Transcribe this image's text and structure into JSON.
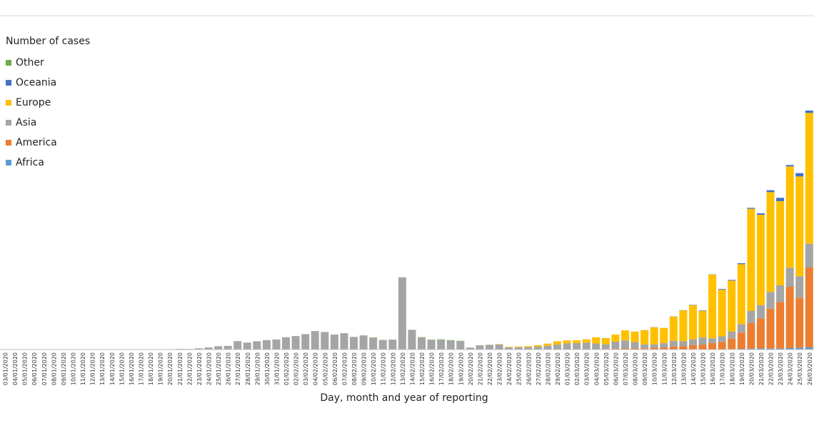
{
  "chart_data": {
    "type": "stacked-bar",
    "legend_title": "Number of cases",
    "x_label": "Day, month and year of reporting",
    "categories": [
      "03/01/2020",
      "04/01/2020",
      "05/01/2020",
      "06/01/2020",
      "07/01/2020",
      "08/01/2020",
      "09/01/2020",
      "10/01/2020",
      "11/01/2020",
      "12/01/2020",
      "13/01/2020",
      "14/01/2020",
      "15/01/2020",
      "16/01/2020",
      "17/01/2020",
      "18/01/2020",
      "19/01/2020",
      "20/01/2020",
      "21/01/2020",
      "22/01/2020",
      "23/01/2020",
      "24/01/2020",
      "25/01/2020",
      "26/01/2020",
      "27/01/2020",
      "28/01/2020",
      "29/01/2020",
      "30/01/2020",
      "31/01/2020",
      "01/02/2020",
      "02/02/2020",
      "03/02/2020",
      "04/02/2020",
      "05/02/2020",
      "06/02/2020",
      "07/02/2020",
      "08/02/2020",
      "09/02/2020",
      "10/02/2020",
      "11/02/2020",
      "12/02/2020",
      "13/02/2020",
      "14/02/2020",
      "15/02/2020",
      "16/02/2020",
      "17/02/2020",
      "18/02/2020",
      "19/02/2020",
      "20/02/2020",
      "21/02/2020",
      "22/02/2020",
      "23/02/2020",
      "24/02/2020",
      "25/02/2020",
      "26/02/2020",
      "27/02/2020",
      "28/02/2020",
      "29/02/2020",
      "01/03/2020",
      "02/03/2020",
      "03/03/2020",
      "04/03/2020",
      "05/03/2020",
      "06/03/2020",
      "07/03/2020",
      "08/03/2020",
      "09/03/2020",
      "10/03/2020",
      "11/03/2020",
      "12/03/2020",
      "13/03/2020",
      "14/03/2020",
      "15/03/2020",
      "16/03/2020",
      "17/03/2020",
      "18/03/2020",
      "19/03/2020",
      "20/03/2020",
      "21/03/2020",
      "22/03/2020",
      "23/03/2020",
      "24/03/2020",
      "25/03/2020",
      "26/03/2020"
    ],
    "ylim": [
      0,
      60000
    ],
    "series": [
      {
        "name": "Africa",
        "color": "#5b9bd5",
        "values": [
          0,
          0,
          0,
          0,
          0,
          0,
          0,
          0,
          0,
          0,
          0,
          0,
          0,
          0,
          0,
          0,
          0,
          0,
          0,
          0,
          0,
          0,
          0,
          0,
          0,
          0,
          0,
          0,
          0,
          0,
          0,
          0,
          0,
          0,
          0,
          0,
          0,
          0,
          0,
          0,
          0,
          0,
          1,
          0,
          0,
          0,
          0,
          0,
          0,
          0,
          0,
          0,
          0,
          1,
          0,
          1,
          1,
          0,
          1,
          2,
          3,
          5,
          8,
          10,
          20,
          15,
          10,
          20,
          30,
          40,
          30,
          50,
          40,
          60,
          80,
          100,
          150,
          200,
          250,
          200,
          200,
          300,
          400,
          450
        ]
      },
      {
        "name": "America",
        "color": "#ed7d31",
        "values": [
          0,
          0,
          0,
          0,
          0,
          0,
          0,
          0,
          0,
          0,
          0,
          0,
          0,
          0,
          0,
          0,
          0,
          0,
          1,
          0,
          0,
          1,
          0,
          1,
          1,
          0,
          0,
          1,
          0,
          1,
          1,
          0,
          0,
          1,
          0,
          0,
          0,
          0,
          1,
          1,
          0,
          0,
          0,
          0,
          0,
          0,
          0,
          0,
          1,
          0,
          1,
          2,
          3,
          5,
          10,
          15,
          20,
          40,
          20,
          50,
          40,
          60,
          100,
          150,
          200,
          250,
          250,
          350,
          400,
          600,
          700,
          900,
          1000,
          1300,
          1500,
          2200,
          3400,
          5400,
          6300,
          8400,
          9800,
          12900,
          10500,
          16800
        ]
      },
      {
        "name": "Asia",
        "color": "#a5a5a5",
        "values": [
          0,
          0,
          15,
          0,
          0,
          0,
          0,
          0,
          0,
          0,
          1,
          0,
          1,
          0,
          0,
          0,
          0,
          77,
          149,
          131,
          259,
          444,
          688,
          769,
          1771,
          1459,
          1737,
          1982,
          2102,
          2590,
          2829,
          3235,
          3887,
          3694,
          3143,
          3385,
          2652,
          2973,
          2467,
          2015,
          2050,
          15141,
          4156,
          2538,
          2007,
          2050,
          1890,
          1750,
          400,
          890,
          1000,
          1050,
          450,
          480,
          500,
          600,
          780,
          1000,
          1300,
          1300,
          1400,
          1200,
          1000,
          1500,
          1700,
          1300,
          800,
          700,
          900,
          1200,
          1000,
          1200,
          1500,
          1000,
          1200,
          1500,
          1800,
          2500,
          2800,
          3500,
          3500,
          4000,
          4500,
          5000
        ]
      },
      {
        "name": "Europe",
        "color": "#ffc000",
        "values": [
          0,
          0,
          0,
          0,
          0,
          0,
          0,
          0,
          0,
          0,
          0,
          0,
          0,
          0,
          0,
          0,
          0,
          0,
          0,
          0,
          0,
          2,
          1,
          0,
          0,
          1,
          2,
          0,
          4,
          0,
          1,
          0,
          0,
          1,
          2,
          3,
          1,
          0,
          2,
          0,
          1,
          1,
          3,
          0,
          1,
          0,
          0,
          0,
          2,
          1,
          17,
          80,
          90,
          150,
          200,
          300,
          450,
          700,
          600,
          600,
          700,
          1300,
          1300,
          1500,
          2100,
          2200,
          3000,
          3600,
          3200,
          5100,
          6500,
          7200,
          5600,
          13400,
          9800,
          10700,
          12600,
          21500,
          19000,
          21000,
          17700,
          21300,
          21000,
          27500
        ]
      },
      {
        "name": "Oceania",
        "color": "#4472c4",
        "values": [
          0,
          0,
          0,
          0,
          0,
          0,
          0,
          0,
          0,
          0,
          0,
          0,
          0,
          0,
          0,
          0,
          0,
          0,
          0,
          0,
          0,
          0,
          4,
          1,
          0,
          0,
          1,
          2,
          1,
          2,
          2,
          0,
          0,
          0,
          0,
          0,
          0,
          0,
          0,
          0,
          0,
          0,
          0,
          0,
          0,
          0,
          0,
          0,
          0,
          0,
          2,
          0,
          0,
          0,
          0,
          0,
          0,
          1,
          3,
          1,
          10,
          9,
          11,
          6,
          4,
          10,
          18,
          30,
          15,
          30,
          50,
          60,
          100,
          50,
          150,
          150,
          200,
          200,
          300,
          400,
          700,
          300,
          700,
          500
        ]
      },
      {
        "name": "Other",
        "color": "#70ad47",
        "values": [
          0,
          0,
          0,
          0,
          0,
          0,
          0,
          0,
          0,
          0,
          0,
          0,
          0,
          0,
          0,
          0,
          0,
          0,
          0,
          0,
          0,
          0,
          0,
          0,
          0,
          0,
          0,
          0,
          0,
          0,
          0,
          0,
          0,
          0,
          10,
          41,
          3,
          6,
          66,
          0,
          39,
          44,
          0,
          67,
          70,
          99,
          88,
          79,
          13,
          0,
          0,
          0,
          0,
          0,
          0,
          0,
          0,
          0,
          0,
          0,
          0,
          0,
          0,
          0,
          0,
          0,
          0,
          0,
          0,
          0,
          0,
          0,
          0,
          0,
          0,
          0,
          0,
          0,
          0,
          0,
          0,
          0,
          0,
          0
        ]
      }
    ]
  }
}
